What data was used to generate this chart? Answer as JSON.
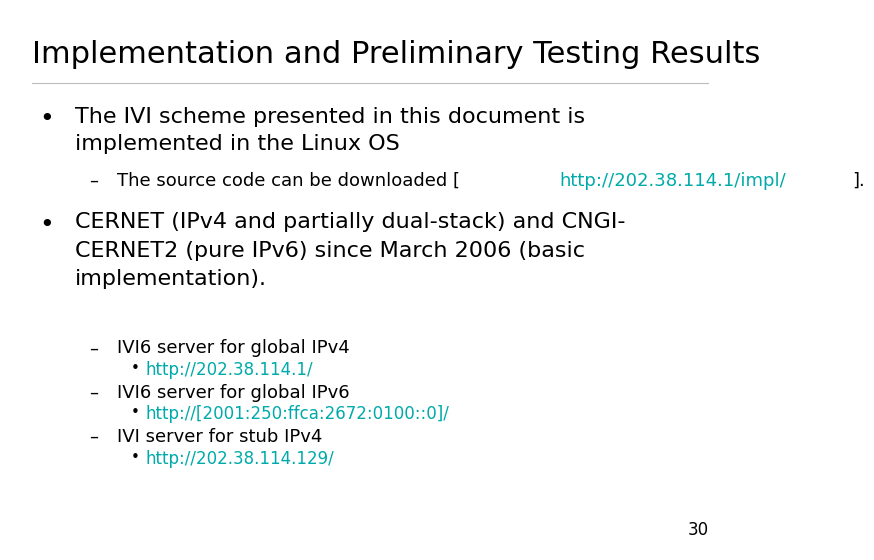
{
  "title": "Implementation and Preliminary Testing Results",
  "background_color": "#ffffff",
  "title_color": "#000000",
  "title_fontsize": 22,
  "body_fontsize": 16,
  "sub_fontsize": 13,
  "subsub_fontsize": 12,
  "link_color": "#00AAAA",
  "text_color": "#000000",
  "page_number": "30",
  "bullet1_line1": "The IVI scheme presented in this document is",
  "bullet1_line2": "implemented in the Linux OS",
  "bullet1_sub1_prefix": "The source code can be downloaded [",
  "bullet1_sub1_link": "http://202.38.114.1/impl/",
  "bullet1_sub1_suffix": "].",
  "bullet2_line1": "CERNET (IPv4 and partially dual-stack) and CNGI-",
  "bullet2_line2": "CERNET2 (pure IPv6) since March 2006 (basic",
  "bullet2_line3": "implementation).",
  "bullet2_sub1": "IVI6 server for global IPv4",
  "bullet2_sub1_link": "http://202.38.114.1/",
  "bullet2_sub2": "IVI6 server for global IPv6",
  "bullet2_sub2_link": "http://[2001:250:ffca:2672:0100::0]/",
  "bullet2_sub3": "IVI server for stub IPv4",
  "bullet2_sub3_link": "http://202.38.114.129/"
}
